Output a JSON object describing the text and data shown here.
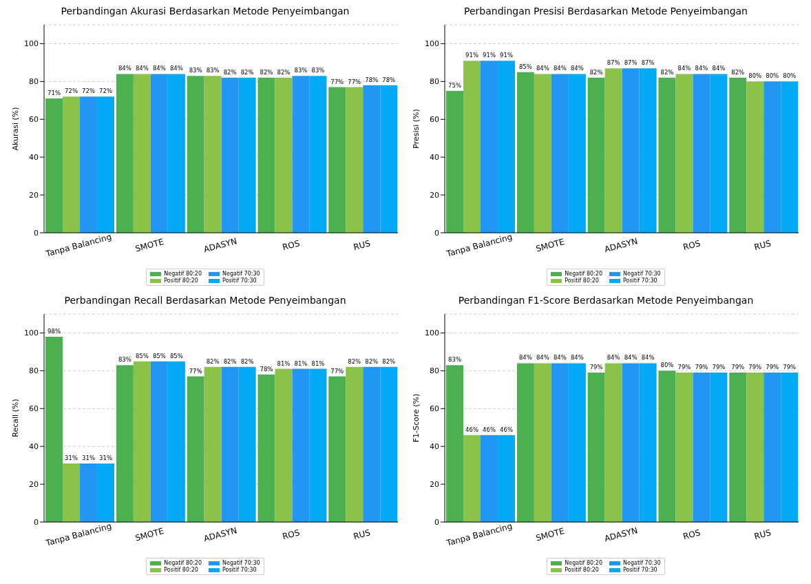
{
  "chart_data": [
    {
      "type": "bar",
      "title": "Perbandingan Akurasi Berdasarkan Metode Penyeimbangan",
      "ylabel": "Akurasi (%)",
      "categories": [
        "Tanpa Balancing",
        "SMOTE",
        "ADASYN",
        "ROS",
        "RUS"
      ],
      "ylim": [
        0,
        110
      ],
      "yticks": [
        0,
        20,
        40,
        60,
        80,
        100
      ],
      "grid": "y",
      "legend": "bottom",
      "series": [
        {
          "name": "Negatif 80:20",
          "color": "#4caf50",
          "values": [
            71,
            84,
            83,
            82,
            77
          ],
          "value_labels": [
            "71%",
            "84%",
            "83%",
            "82%",
            "77%"
          ]
        },
        {
          "name": "Positif 80:20",
          "color": "#8bc34a",
          "values": [
            72,
            84,
            83,
            82,
            77
          ],
          "value_labels": [
            "72%",
            "84%",
            "83%",
            "82%",
            "77%"
          ]
        },
        {
          "name": "Negatif 70:30",
          "color": "#2196f3",
          "values": [
            72,
            84,
            82,
            83,
            78
          ],
          "value_labels": [
            "72%",
            "84%",
            "82%",
            "83%",
            "78%"
          ]
        },
        {
          "name": "Positif 70:30",
          "color": "#03a9f4",
          "values": [
            72,
            84,
            82,
            83,
            78
          ],
          "value_labels": [
            "72%",
            "84%",
            "82%",
            "83%",
            "78%"
          ]
        }
      ]
    },
    {
      "type": "bar",
      "title": "Perbandingan Presisi Berdasarkan Metode Penyeimbangan",
      "ylabel": "Presisi (%)",
      "categories": [
        "Tanpa Balancing",
        "SMOTE",
        "ADASYN",
        "ROS",
        "RUS"
      ],
      "ylim": [
        0,
        110
      ],
      "yticks": [
        0,
        20,
        40,
        60,
        80,
        100
      ],
      "grid": "y",
      "legend": "bottom",
      "series": [
        {
          "name": "Negatif 80:20",
          "color": "#4caf50",
          "values": [
            75,
            85,
            82,
            82,
            82
          ],
          "value_labels": [
            "75%",
            "85%",
            "82%",
            "82%",
            "82%"
          ]
        },
        {
          "name": "Positif 80:20",
          "color": "#8bc34a",
          "values": [
            91,
            84,
            87,
            84,
            80
          ],
          "value_labels": [
            "91%",
            "84%",
            "87%",
            "84%",
            "80%"
          ]
        },
        {
          "name": "Negatif 70:30",
          "color": "#2196f3",
          "values": [
            91,
            84,
            87,
            84,
            80
          ],
          "value_labels": [
            "91%",
            "84%",
            "87%",
            "84%",
            "80%"
          ]
        },
        {
          "name": "Positif 70:30",
          "color": "#03a9f4",
          "values": [
            91,
            84,
            87,
            84,
            80
          ],
          "value_labels": [
            "91%",
            "84%",
            "87%",
            "84%",
            "80%"
          ]
        }
      ]
    },
    {
      "type": "bar",
      "title": "Perbandingan Recall Berdasarkan Metode Penyeimbangan",
      "ylabel": "Recall (%)",
      "categories": [
        "Tanpa Balancing",
        "SMOTE",
        "ADASYN",
        "ROS",
        "RUS"
      ],
      "ylim": [
        0,
        110
      ],
      "yticks": [
        0,
        20,
        40,
        60,
        80,
        100
      ],
      "grid": "y",
      "legend": "bottom",
      "series": [
        {
          "name": "Negatif 80:20",
          "color": "#4caf50",
          "values": [
            98,
            83,
            77,
            78,
            77
          ],
          "value_labels": [
            "98%",
            "83%",
            "77%",
            "78%",
            "77%"
          ]
        },
        {
          "name": "Positif 80:20",
          "color": "#8bc34a",
          "values": [
            31,
            85,
            82,
            81,
            82
          ],
          "value_labels": [
            "31%",
            "85%",
            "82%",
            "81%",
            "82%"
          ]
        },
        {
          "name": "Negatif 70:30",
          "color": "#2196f3",
          "values": [
            31,
            85,
            82,
            81,
            82
          ],
          "value_labels": [
            "31%",
            "85%",
            "82%",
            "81%",
            "82%"
          ]
        },
        {
          "name": "Positif 70:30",
          "color": "#03a9f4",
          "values": [
            31,
            85,
            82,
            81,
            82
          ],
          "value_labels": [
            "31%",
            "85%",
            "82%",
            "81%",
            "82%"
          ]
        }
      ]
    },
    {
      "type": "bar",
      "title": "Perbandingan F1-Score Berdasarkan Metode Penyeimbangan",
      "ylabel": "F1-Score (%)",
      "categories": [
        "Tanpa Balancing",
        "SMOTE",
        "ADASYN",
        "ROS",
        "RUS"
      ],
      "ylim": [
        0,
        110
      ],
      "yticks": [
        0,
        20,
        40,
        60,
        80,
        100
      ],
      "grid": "y",
      "legend": "bottom",
      "series": [
        {
          "name": "Negatif 80:20",
          "color": "#4caf50",
          "values": [
            83,
            84,
            79,
            80,
            79
          ],
          "value_labels": [
            "83%",
            "84%",
            "79%",
            "80%",
            "79%"
          ]
        },
        {
          "name": "Positif 80:20",
          "color": "#8bc34a",
          "values": [
            46,
            84,
            84,
            79,
            79
          ],
          "value_labels": [
            "46%",
            "84%",
            "84%",
            "79%",
            "79%"
          ]
        },
        {
          "name": "Negatif 70:30",
          "color": "#2196f3",
          "values": [
            46,
            84,
            84,
            79,
            79
          ],
          "value_labels": [
            "46%",
            "84%",
            "84%",
            "79%",
            "79%"
          ]
        },
        {
          "name": "Positif 70:30",
          "color": "#03a9f4",
          "values": [
            46,
            84,
            84,
            79,
            79
          ],
          "value_labels": [
            "46%",
            "84%",
            "84%",
            "79%",
            "79%"
          ]
        }
      ]
    }
  ]
}
